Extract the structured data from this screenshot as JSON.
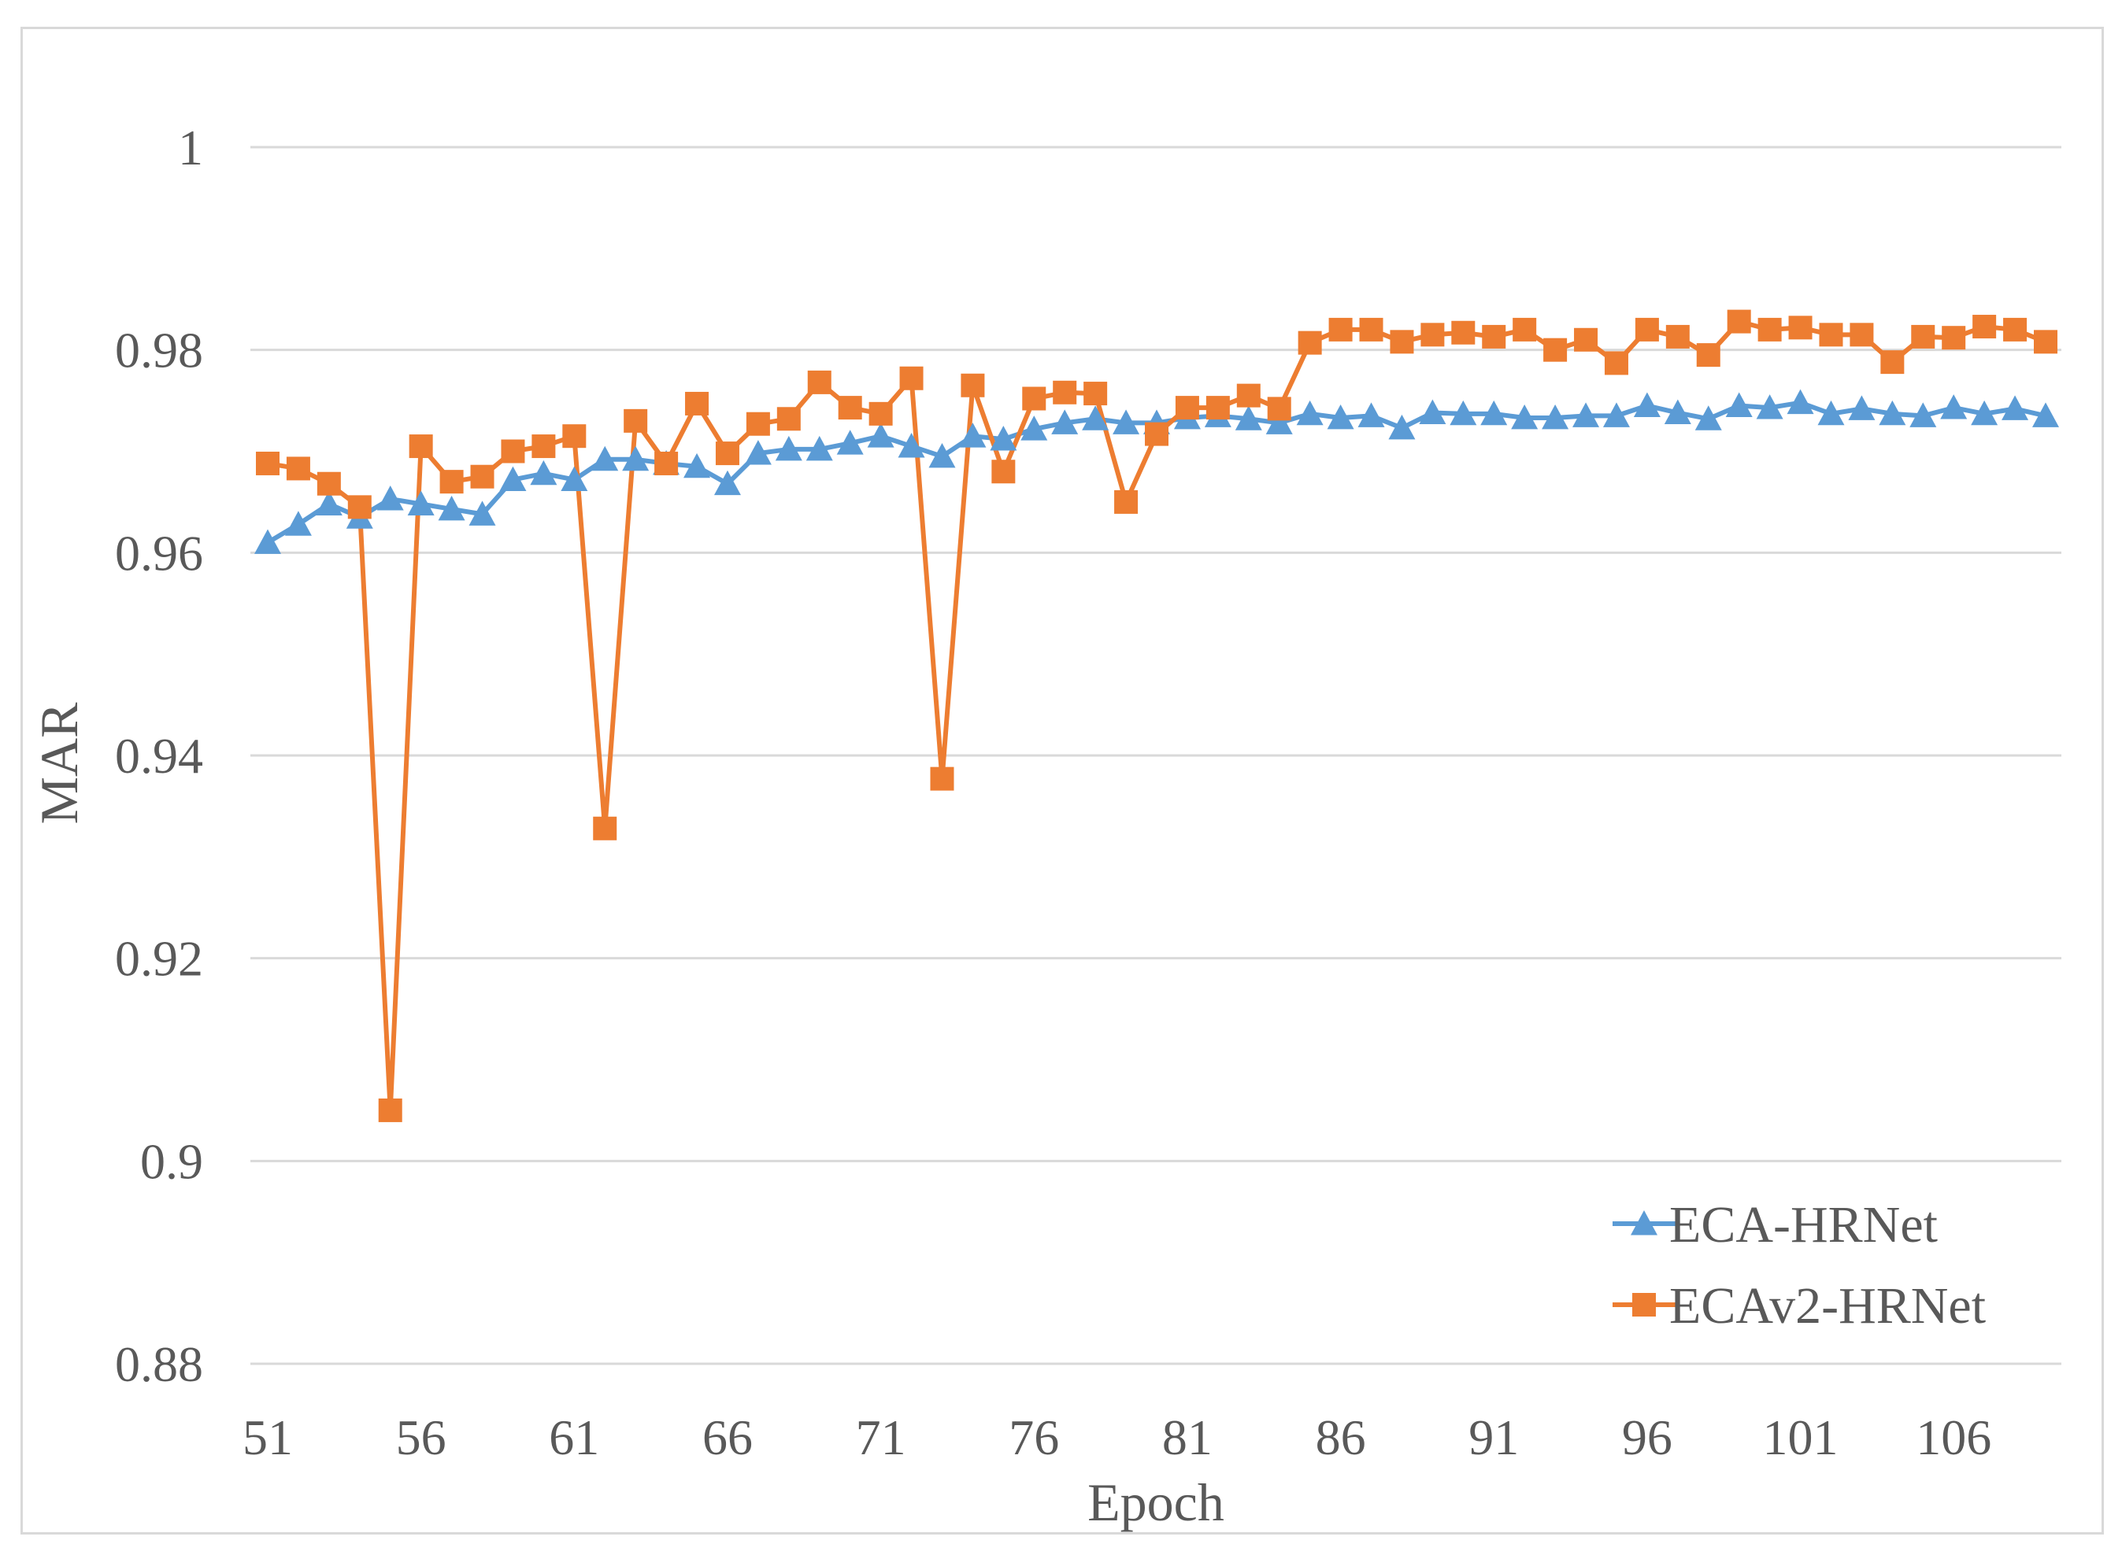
{
  "chart_data": {
    "type": "line",
    "title": "",
    "xlabel": "Epoch",
    "ylabel": "MAR",
    "ylim": [
      0.88,
      1.0
    ],
    "yticks": [
      "0.88",
      "0.9",
      "0.92",
      "0.94",
      "0.96",
      "0.98",
      "1"
    ],
    "xtick_labels": [
      "51",
      "56",
      "61",
      "66",
      "71",
      "76",
      "81",
      "86",
      "91",
      "96",
      "101",
      "106"
    ],
    "x": [
      51,
      52,
      53,
      54,
      55,
      56,
      57,
      58,
      59,
      60,
      61,
      62,
      63,
      64,
      65,
      66,
      67,
      68,
      69,
      70,
      71,
      72,
      73,
      74,
      75,
      76,
      77,
      78,
      79,
      80,
      81,
      82,
      83,
      84,
      85,
      86,
      87,
      88,
      89,
      90,
      91,
      92,
      93,
      94,
      95,
      96,
      97,
      98,
      99,
      100,
      101,
      102,
      103,
      104,
      105,
      106,
      107,
      108,
      109
    ],
    "grid": true,
    "legend_position": "bottom-right",
    "series": [
      {
        "name": "ECA-HRNet",
        "color": "#5b9bd5",
        "marker": "triangle",
        "values": [
          0.961,
          0.9628,
          0.9648,
          0.9635,
          0.9653,
          0.9648,
          0.9643,
          0.9638,
          0.9672,
          0.9678,
          0.9672,
          0.9692,
          0.9692,
          0.9688,
          0.9685,
          0.9668,
          0.9698,
          0.9702,
          0.9702,
          0.9708,
          0.9715,
          0.9705,
          0.9695,
          0.9715,
          0.9712,
          0.9722,
          0.9728,
          0.9732,
          0.9728,
          0.9728,
          0.9733,
          0.9735,
          0.9732,
          0.9728,
          0.9737,
          0.9733,
          0.9735,
          0.9723,
          0.9738,
          0.9737,
          0.9737,
          0.9733,
          0.9733,
          0.9735,
          0.9735,
          0.9745,
          0.9738,
          0.9732,
          0.9745,
          0.9743,
          0.9748,
          0.9737,
          0.9742,
          0.9737,
          0.9735,
          0.9743,
          0.9737,
          0.9742,
          0.9735
        ]
      },
      {
        "name": "ECAv2-HRNet",
        "color": "#ed7d31",
        "marker": "square",
        "values": [
          0.9688,
          0.9683,
          0.9668,
          0.9645,
          0.905,
          0.9705,
          0.967,
          0.9675,
          0.97,
          0.9705,
          0.9715,
          0.9328,
          0.973,
          0.9688,
          0.9747,
          0.9698,
          0.9727,
          0.9732,
          0.9768,
          0.9743,
          0.9737,
          0.9772,
          0.9377,
          0.9765,
          0.968,
          0.9752,
          0.9758,
          0.9757,
          0.965,
          0.9717,
          0.9743,
          0.9743,
          0.9755,
          0.9742,
          0.9807,
          0.982,
          0.982,
          0.9808,
          0.9815,
          0.9817,
          0.9813,
          0.982,
          0.98,
          0.981,
          0.9787,
          0.982,
          0.9813,
          0.9795,
          0.9828,
          0.982,
          0.9822,
          0.9815,
          0.9815,
          0.9788,
          0.9813,
          0.9812,
          0.9823,
          0.982,
          0.9808
        ]
      }
    ]
  }
}
